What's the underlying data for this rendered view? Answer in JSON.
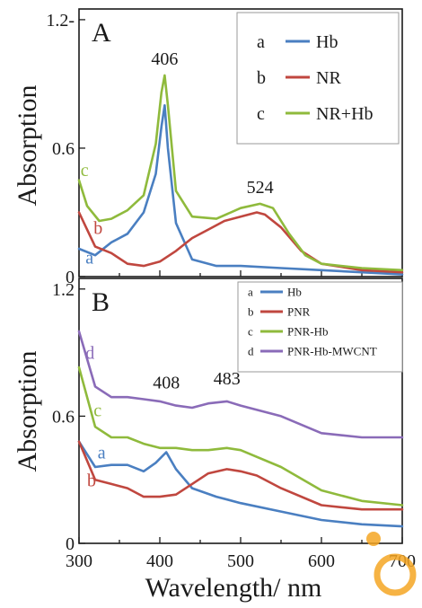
{
  "colors": {
    "blue": "#4a7fc1",
    "red": "#c0473f",
    "green": "#8fba3c",
    "purple": "#8a6bb8",
    "watermark": "#f5a623"
  },
  "axis": {
    "xlabel": "Wavelength/ nm",
    "ylabel": "Absorption"
  },
  "chart_data": [
    {
      "type": "line",
      "panel_label": "A",
      "xlim": [
        300,
        700
      ],
      "ylim": [
        0,
        1.25
      ],
      "yticks": [
        {
          "v": 0,
          "label": "0"
        },
        {
          "v": 0.6,
          "label": "0.6"
        },
        {
          "v": 1.2,
          "label": "1.2-"
        }
      ],
      "legend": {
        "position": "top-right",
        "entries": [
          {
            "letter": "a",
            "label": "Hb"
          },
          {
            "letter": "b",
            "label": "NR"
          },
          {
            "letter": "c",
            "label": "NR+Hb"
          }
        ]
      },
      "annotations": [
        {
          "text": "406",
          "x": 406,
          "y": 0.99
        },
        {
          "text": "524",
          "x": 524,
          "y": 0.39
        }
      ],
      "series": [
        {
          "name": "Hb",
          "letter": "a",
          "color": "#4a7fc1",
          "x": [
            300,
            320,
            340,
            360,
            380,
            395,
            402,
            406,
            410,
            420,
            440,
            470,
            500,
            550,
            600,
            650,
            700
          ],
          "y": [
            0.13,
            0.1,
            0.16,
            0.2,
            0.3,
            0.48,
            0.7,
            0.8,
            0.6,
            0.25,
            0.08,
            0.05,
            0.05,
            0.04,
            0.03,
            0.02,
            0.01
          ]
        },
        {
          "name": "NR",
          "letter": "b",
          "color": "#c0473f",
          "x": [
            300,
            310,
            320,
            340,
            360,
            380,
            400,
            420,
            440,
            460,
            480,
            500,
            520,
            530,
            550,
            575,
            600,
            650,
            700
          ],
          "y": [
            0.3,
            0.22,
            0.14,
            0.11,
            0.06,
            0.05,
            0.07,
            0.12,
            0.18,
            0.22,
            0.26,
            0.28,
            0.3,
            0.29,
            0.23,
            0.12,
            0.06,
            0.03,
            0.02
          ]
        },
        {
          "name": "NR+Hb",
          "letter": "c",
          "color": "#8fba3c",
          "x": [
            300,
            310,
            325,
            340,
            360,
            380,
            395,
            402,
            406,
            410,
            420,
            440,
            470,
            500,
            524,
            540,
            560,
            580,
            600,
            650,
            700
          ],
          "y": [
            0.45,
            0.33,
            0.26,
            0.27,
            0.31,
            0.38,
            0.62,
            0.86,
            0.94,
            0.8,
            0.4,
            0.28,
            0.27,
            0.32,
            0.34,
            0.32,
            0.2,
            0.1,
            0.06,
            0.04,
            0.03
          ]
        }
      ],
      "curve_labels": [
        {
          "text": "c",
          "series": "NR+Hb",
          "x": 302,
          "y": 0.47
        },
        {
          "text": "b",
          "series": "NR",
          "x": 318,
          "y": 0.2
        },
        {
          "text": "a",
          "series": "Hb",
          "x": 308,
          "y": 0.06
        }
      ]
    },
    {
      "type": "line",
      "panel_label": "B",
      "xlim": [
        300,
        700
      ],
      "ylim": [
        0,
        1.25
      ],
      "xticks": [
        {
          "v": 300,
          "label": "300"
        },
        {
          "v": 400,
          "label": "400"
        },
        {
          "v": 500,
          "label": "500"
        },
        {
          "v": 600,
          "label": "600"
        },
        {
          "v": 700,
          "label": "700"
        }
      ],
      "yticks": [
        {
          "v": 0,
          "label": "0"
        },
        {
          "v": 0.6,
          "label": "0.6"
        },
        {
          "v": 1.2,
          "label": "1.2"
        }
      ],
      "legend": {
        "position": "top-right",
        "entries": [
          {
            "letter": "a",
            "label": "Hb"
          },
          {
            "letter": "b",
            "label": "PNR"
          },
          {
            "letter": "c",
            "label": "PNR-Hb"
          },
          {
            "letter": "d",
            "label": "PNR-Hb-MWCNT"
          }
        ]
      },
      "annotations": [
        {
          "text": "408",
          "x": 408,
          "y": 0.73
        },
        {
          "text": "483",
          "x": 483,
          "y": 0.75
        }
      ],
      "series": [
        {
          "name": "Hb",
          "letter": "a",
          "color": "#4a7fc1",
          "x": [
            300,
            320,
            340,
            360,
            380,
            395,
            408,
            420,
            440,
            470,
            500,
            550,
            600,
            650,
            700
          ],
          "y": [
            0.48,
            0.36,
            0.37,
            0.37,
            0.34,
            0.38,
            0.43,
            0.35,
            0.26,
            0.22,
            0.19,
            0.15,
            0.11,
            0.09,
            0.08
          ]
        },
        {
          "name": "PNR",
          "letter": "b",
          "color": "#c0473f",
          "x": [
            300,
            320,
            340,
            360,
            380,
            400,
            420,
            440,
            460,
            483,
            500,
            520,
            550,
            600,
            650,
            700
          ],
          "y": [
            0.48,
            0.3,
            0.28,
            0.26,
            0.22,
            0.22,
            0.23,
            0.28,
            0.33,
            0.35,
            0.34,
            0.32,
            0.26,
            0.18,
            0.16,
            0.16
          ]
        },
        {
          "name": "PNR-Hb",
          "letter": "c",
          "color": "#8fba3c",
          "x": [
            300,
            320,
            340,
            360,
            380,
            400,
            420,
            440,
            460,
            483,
            500,
            550,
            600,
            650,
            700
          ],
          "y": [
            0.83,
            0.55,
            0.5,
            0.5,
            0.47,
            0.45,
            0.45,
            0.44,
            0.44,
            0.45,
            0.44,
            0.36,
            0.25,
            0.2,
            0.18
          ]
        },
        {
          "name": "PNR-Hb-MWCNT",
          "letter": "d",
          "color": "#8a6bb8",
          "x": [
            300,
            320,
            340,
            360,
            380,
            400,
            420,
            440,
            460,
            483,
            500,
            550,
            600,
            650,
            700
          ],
          "y": [
            1.0,
            0.74,
            0.69,
            0.69,
            0.68,
            0.67,
            0.65,
            0.64,
            0.66,
            0.67,
            0.65,
            0.6,
            0.52,
            0.5,
            0.5
          ]
        }
      ],
      "curve_labels": [
        {
          "text": "d",
          "series": "PNR-Hb-MWCNT",
          "x": 308,
          "y": 0.87
        },
        {
          "text": "c",
          "series": "PNR-Hb",
          "x": 318,
          "y": 0.6
        },
        {
          "text": "a",
          "series": "Hb",
          "x": 323,
          "y": 0.4
        },
        {
          "text": "b",
          "series": "PNR",
          "x": 310,
          "y": 0.27
        }
      ]
    }
  ]
}
